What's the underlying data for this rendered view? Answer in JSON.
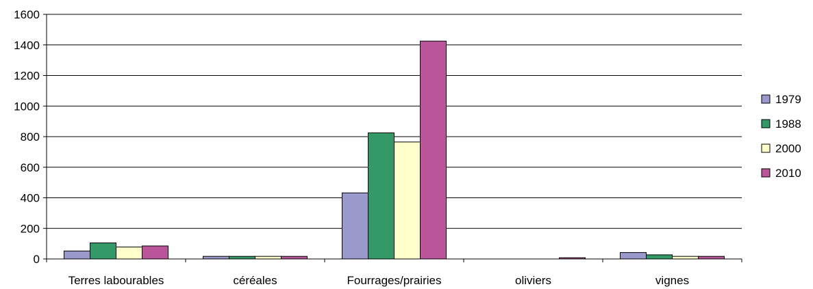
{
  "chart_data": {
    "type": "bar",
    "title": "",
    "xlabel": "",
    "ylabel": "",
    "categories": [
      "Terres labourables",
      "céréales",
      "Fourrages/prairies",
      "oliviers",
      "vignes"
    ],
    "series": [
      {
        "name": "1979",
        "values": [
          52,
          17,
          432,
          0,
          42
        ],
        "color": "#9999cc"
      },
      {
        "name": "1988",
        "values": [
          105,
          17,
          825,
          0,
          27
        ],
        "color": "#339966"
      },
      {
        "name": "2000",
        "values": [
          78,
          17,
          765,
          0,
          17
        ],
        "color": "#ffffcc"
      },
      {
        "name": "2010",
        "values": [
          85,
          17,
          1425,
          8,
          17
        ],
        "color": "#bb5599"
      }
    ],
    "ylim": [
      0,
      1600
    ],
    "yticks": [
      "0",
      "200",
      "400",
      "600",
      "800",
      "1000",
      "1200",
      "1400",
      "1600"
    ],
    "grid": true,
    "legend_position": "right"
  }
}
